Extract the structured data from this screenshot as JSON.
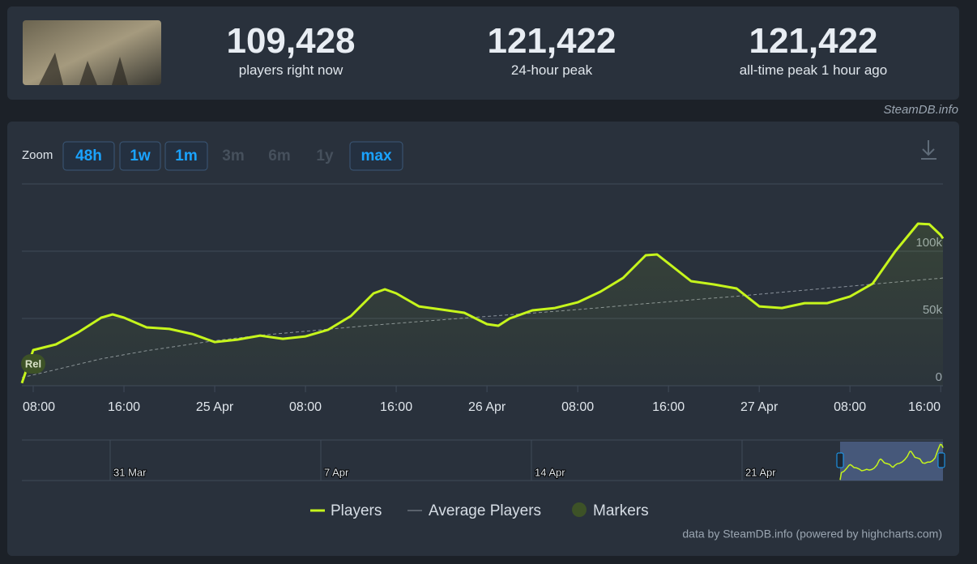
{
  "source": "SteamDB.info",
  "stats": [
    {
      "value": "109,428",
      "label": "players right now"
    },
    {
      "value": "121,422",
      "label": "24-hour peak"
    },
    {
      "value": "121,422",
      "label": "all-time peak 1 hour ago"
    }
  ],
  "chart_data": {
    "type": "line",
    "zoom": {
      "label": "Zoom",
      "buttons": [
        {
          "text": "48h",
          "enabled": true
        },
        {
          "text": "1w",
          "enabled": true
        },
        {
          "text": "1m",
          "enabled": true
        },
        {
          "text": "3m",
          "enabled": false
        },
        {
          "text": "6m",
          "enabled": false
        },
        {
          "text": "1y",
          "enabled": false
        },
        {
          "text": "max",
          "enabled": true
        }
      ]
    },
    "x": [
      "24 Apr 07:00",
      "24 Apr 08:00",
      "24 Apr 10:00",
      "24 Apr 12:00",
      "24 Apr 14:00",
      "24 Apr 15:00",
      "24 Apr 16:00",
      "24 Apr 18:00",
      "24 Apr 20:00",
      "24 Apr 22:00",
      "25 Apr 00:00",
      "25 Apr 02:00",
      "25 Apr 04:00",
      "25 Apr 06:00",
      "25 Apr 08:00",
      "25 Apr 10:00",
      "25 Apr 12:00",
      "25 Apr 14:00",
      "25 Apr 15:00",
      "25 Apr 16:00",
      "25 Apr 18:00",
      "25 Apr 20:00",
      "25 Apr 22:00",
      "26 Apr 00:00",
      "26 Apr 01:00",
      "26 Apr 02:00",
      "26 Apr 04:00",
      "26 Apr 06:00",
      "26 Apr 08:00",
      "26 Apr 10:00",
      "26 Apr 12:00",
      "26 Apr 14:00",
      "26 Apr 15:00",
      "26 Apr 16:00",
      "26 Apr 18:00",
      "26 Apr 20:00",
      "26 Apr 22:00",
      "27 Apr 00:00",
      "27 Apr 02:00",
      "27 Apr 04:00",
      "27 Apr 06:00",
      "27 Apr 08:00",
      "27 Apr 10:00",
      "27 Apr 12:00",
      "27 Apr 14:00",
      "27 Apr 15:00",
      "27 Apr 16:00",
      "27 Apr 16:12"
    ],
    "series": [
      {
        "name": "Players",
        "color": "#c6f51c",
        "values": [
          2000,
          26500,
          30700,
          39800,
          50600,
          53000,
          50600,
          43400,
          42200,
          38500,
          32500,
          34300,
          37300,
          34900,
          36700,
          41600,
          51800,
          68700,
          71700,
          68700,
          59000,
          56600,
          54200,
          45800,
          44600,
          50000,
          56000,
          57800,
          62000,
          69900,
          80100,
          97000,
          97600,
          91000,
          77700,
          75300,
          72300,
          59000,
          57800,
          61400,
          61400,
          66300,
          75900,
          100000,
          120500,
          120000,
          112000,
          109428
        ]
      },
      {
        "name": "Average Players",
        "color": "#8a929c",
        "values": [
          6000,
          8000,
          12000,
          16000,
          20000,
          21500,
          23000,
          26000,
          28500,
          31000,
          33500,
          35500,
          37500,
          39000,
          40500,
          42000,
          43500,
          45000,
          45700,
          46300,
          47700,
          49000,
          50300,
          51500,
          52100,
          52700,
          54000,
          55300,
          56600,
          58000,
          59500,
          61000,
          61700,
          62400,
          63800,
          65200,
          66500,
          68000,
          69500,
          71000,
          72500,
          74000,
          75500,
          77000,
          78500,
          79200,
          79900,
          80100
        ]
      }
    ],
    "markers": {
      "name": "Markers",
      "color": "#3d5227",
      "items": [
        {
          "x": "24 Apr 08:00",
          "label": "Rel"
        }
      ]
    },
    "xlim": [
      "24 Apr 07:00",
      "27 Apr 16:12"
    ],
    "xticks": [
      {
        "value": "24 Apr 08:00",
        "label": "08:00"
      },
      {
        "value": "24 Apr 16:00",
        "label": "16:00"
      },
      {
        "value": "25 Apr 00:00",
        "label": "25 Apr"
      },
      {
        "value": "25 Apr 08:00",
        "label": "08:00"
      },
      {
        "value": "25 Apr 16:00",
        "label": "16:00"
      },
      {
        "value": "26 Apr 00:00",
        "label": "26 Apr"
      },
      {
        "value": "26 Apr 08:00",
        "label": "08:00"
      },
      {
        "value": "26 Apr 16:00",
        "label": "16:00"
      },
      {
        "value": "27 Apr 00:00",
        "label": "27 Apr"
      },
      {
        "value": "27 Apr 08:00",
        "label": "08:00"
      },
      {
        "value": "27 Apr 16:00",
        "label": "16:00"
      }
    ],
    "ylim": [
      0,
      150000
    ],
    "yticks": [
      0,
      {
        "value": 50000,
        "label": "50k"
      },
      {
        "value": 100000,
        "label": "100k"
      }
    ],
    "grid": true,
    "navigator": {
      "labels": [
        "31 Mar",
        "7 Apr",
        "14 Apr",
        "21 Apr"
      ]
    },
    "credits": "data by SteamDB.info (powered by highcharts.com)"
  }
}
